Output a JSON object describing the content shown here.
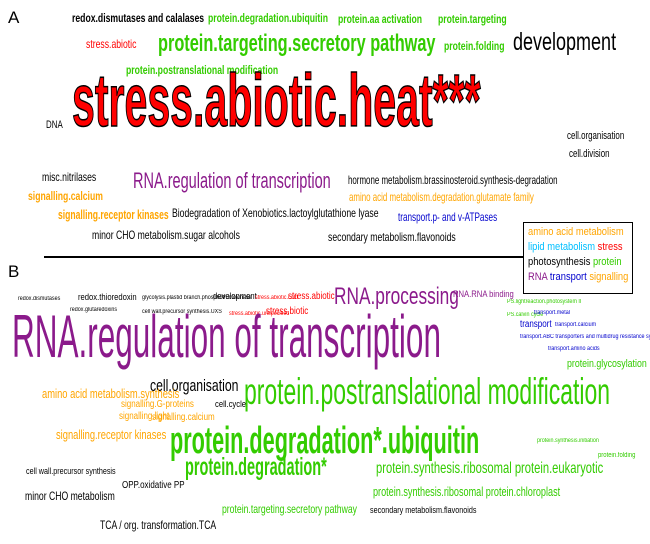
{
  "colors": {
    "black": "#000000",
    "green": "#33cc00",
    "red": "#ff0000",
    "purple": "#8b1a8b",
    "orange": "#ffa500",
    "cyan": "#00bfff",
    "blue": "#0000cc"
  },
  "panel_a": {
    "label": "A",
    "words": [
      {
        "text": "redox.dismutases and calalases",
        "color": "black"
      },
      {
        "text": "protein.degradation.ubiquitin",
        "color": "green"
      },
      {
        "text": "protein.aa activation",
        "color": "green"
      },
      {
        "text": "protein.targeting",
        "color": "green"
      },
      {
        "text": "stress.abiotic",
        "color": "red"
      },
      {
        "text": "protein.targeting.secretory pathway",
        "color": "green"
      },
      {
        "text": "protein.folding",
        "color": "green"
      },
      {
        "text": "development",
        "color": "black"
      },
      {
        "text": "protein.postranslational modification",
        "color": "green"
      },
      {
        "text": "DNA",
        "color": "black"
      },
      {
        "text": "stress.abiotic.heat***",
        "color": "red"
      },
      {
        "text": "cell.organisation",
        "color": "black"
      },
      {
        "text": "cell.division",
        "color": "black"
      },
      {
        "text": "misc.nitrilases",
        "color": "black"
      },
      {
        "text": "RNA.regulation of transcription",
        "color": "purple"
      },
      {
        "text": "hormone metabolism.brassinosteroid.synthesis-degradation",
        "color": "black"
      },
      {
        "text": "signalling.calcium",
        "color": "orange"
      },
      {
        "text": "amino acid metabolism.degradation.glutamate family",
        "color": "orange"
      },
      {
        "text": "signalling.receptor kinases",
        "color": "orange"
      },
      {
        "text": "Biodegradation of Xenobiotics.lactoylglutathione lyase",
        "color": "black"
      },
      {
        "text": "transport.p- and v-ATPases",
        "color": "blue"
      },
      {
        "text": "minor CHO metabolism.sugar alcohols",
        "color": "black"
      },
      {
        "text": "secondary metabolism.flavonoids",
        "color": "black"
      }
    ]
  },
  "legend": {
    "items": [
      {
        "text": "amino acid metabolism",
        "color": "orange"
      },
      {
        "text": "lipid metabolism",
        "color": "cyan"
      },
      {
        "text": "stress",
        "color": "red"
      },
      {
        "text": "photosynthesis",
        "color": "black"
      },
      {
        "text": "protein",
        "color": "green"
      },
      {
        "text": "RNA",
        "color": "purple"
      },
      {
        "text": "transport",
        "color": "blue"
      },
      {
        "text": "signalling",
        "color": "orange"
      }
    ]
  },
  "panel_b": {
    "label": "B",
    "words": [
      {
        "text": "redox.dismutases",
        "color": "black"
      },
      {
        "text": "redox.thioredoxin",
        "color": "black"
      },
      {
        "text": "glycolysis.plastid branch.phosphofructokinase",
        "color": "black"
      },
      {
        "text": "development",
        "color": "black"
      },
      {
        "text": "stress.abiotic.cold",
        "color": "red"
      },
      {
        "text": "stress.abiotic",
        "color": "red"
      },
      {
        "text": "RNA.processing",
        "color": "purple"
      },
      {
        "text": "RNA.RNA binding",
        "color": "purple"
      },
      {
        "text": "PS.lightreaction.photosystem II",
        "color": "green"
      },
      {
        "text": "redox.glutaredoxins",
        "color": "black"
      },
      {
        "text": "cell wall.precursor synthesis.UXS",
        "color": "black"
      },
      {
        "text": "stress.abiotic.unspecified",
        "color": "red"
      },
      {
        "text": "stress.biotic",
        "color": "red"
      },
      {
        "text": "PS.calvin cycle",
        "color": "green"
      },
      {
        "text": "transport.metal",
        "color": "blue"
      },
      {
        "text": "transport",
        "color": "blue"
      },
      {
        "text": "transport.calcium",
        "color": "blue"
      },
      {
        "text": "RNA.regulation of transcription",
        "color": "purple"
      },
      {
        "text": "transport.ABC transporters and multidrug resistance systems",
        "color": "blue"
      },
      {
        "text": "transport.amino acids",
        "color": "blue"
      },
      {
        "text": "protein.glycosylation",
        "color": "green"
      },
      {
        "text": "cell.organisation",
        "color": "black"
      },
      {
        "text": "amino acid metabolism.synthesis",
        "color": "orange"
      },
      {
        "text": "signalling.G-proteins",
        "color": "orange"
      },
      {
        "text": "signalling.light",
        "color": "orange"
      },
      {
        "text": "signalling.calcium",
        "color": "orange"
      },
      {
        "text": "cell.cycle",
        "color": "black"
      },
      {
        "text": "protein.postranslational modification",
        "color": "green"
      },
      {
        "text": "signalling.receptor kinases",
        "color": "orange"
      },
      {
        "text": "protein.degradation*.ubiquitin",
        "color": "green"
      },
      {
        "text": "protein.synthesis.initiation",
        "color": "green"
      },
      {
        "text": "protein.folding",
        "color": "green"
      },
      {
        "text": "cell wall.precursor synthesis",
        "color": "black"
      },
      {
        "text": "OPP.oxidative PP",
        "color": "black"
      },
      {
        "text": "protein.degradation*",
        "color": "green"
      },
      {
        "text": "protein.synthesis.ribosomal protein.eukaryotic",
        "color": "green"
      },
      {
        "text": "minor CHO metabolism",
        "color": "black"
      },
      {
        "text": "protein.synthesis.ribosomal protein.chloroplast",
        "color": "green"
      },
      {
        "text": "TCA / org. transformation.TCA",
        "color": "black"
      },
      {
        "text": "protein.targeting.secretory pathway",
        "color": "green"
      },
      {
        "text": "secondary metabolism.flavonoids",
        "color": "black"
      }
    ]
  }
}
